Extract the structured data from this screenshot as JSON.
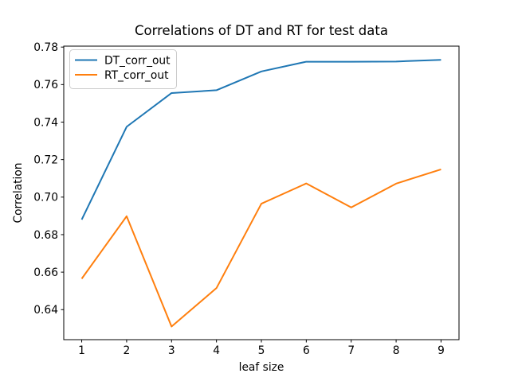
{
  "figure": {
    "kind": "matplotlib-line-plot"
  },
  "chart_data": {
    "type": "line",
    "title": "Correlations of DT and RT for test data",
    "xlabel": "leaf size",
    "ylabel": "Correlation",
    "x": [
      1,
      2,
      3,
      4,
      5,
      6,
      7,
      8,
      9
    ],
    "series": [
      {
        "name": "DT_corr_out",
        "color": "#1f77b4",
        "values": [
          0.688,
          0.7375,
          0.7555,
          0.757,
          0.767,
          0.7722,
          0.7722,
          0.7723,
          0.7732
        ]
      },
      {
        "name": "RT_corr_out",
        "color": "#ff7f0e",
        "values": [
          0.6565,
          0.6898,
          0.631,
          0.6515,
          0.6965,
          0.7073,
          0.6945,
          0.7072,
          0.7148
        ]
      }
    ],
    "xlim": [
      0.6,
      9.4
    ],
    "ylim": [
      0.624,
      0.7805
    ],
    "xticks": [
      "1",
      "2",
      "3",
      "4",
      "5",
      "6",
      "7",
      "8",
      "9"
    ],
    "yticks": [
      "0.64",
      "0.66",
      "0.68",
      "0.70",
      "0.72",
      "0.74",
      "0.76",
      "0.78"
    ],
    "grid": false,
    "legend_position": "upper left",
    "frame_color": "#000000",
    "legend_border_color": "#cccccc",
    "background": "#ffffff"
  }
}
